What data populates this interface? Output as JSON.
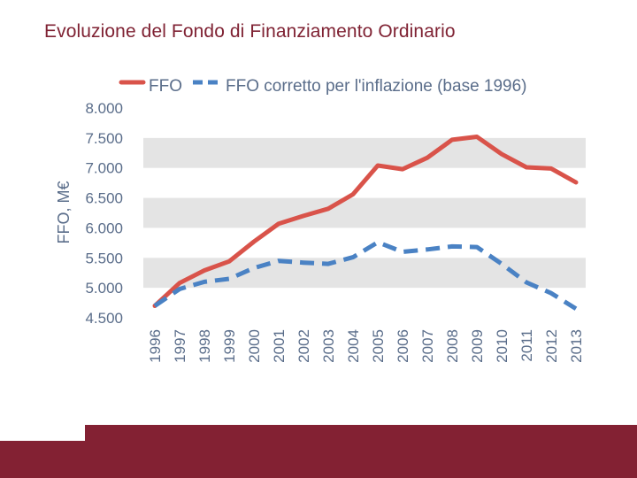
{
  "slide": {
    "title": "Evoluzione del Fondo di Finanziamento Ordinario"
  },
  "chart_data": {
    "type": "line",
    "title": "",
    "xlabel": "",
    "ylabel": "FFO, M€",
    "ylim": [
      4500,
      8000
    ],
    "yticks": [
      "8.000",
      "7.500",
      "7.000",
      "6.500",
      "6.000",
      "5.500",
      "5.000",
      "4.500"
    ],
    "ytick_values": [
      8000,
      7500,
      7000,
      6500,
      6000,
      5500,
      5000,
      4500
    ],
    "categories": [
      "1996",
      "1997",
      "1998",
      "1999",
      "2000",
      "2001",
      "2002",
      "2003",
      "2004",
      "2005",
      "2006",
      "2007",
      "2008",
      "2009",
      "2010",
      "2011",
      "2012",
      "2013"
    ],
    "series": [
      {
        "name": "FFO",
        "color": "#d9534a",
        "dash": "solid",
        "values": [
          4700,
          5080,
          5290,
          5440,
          5770,
          6070,
          6200,
          6320,
          6560,
          7040,
          6980,
          7170,
          7470,
          7520,
          7230,
          7010,
          6990,
          6760
        ]
      },
      {
        "name": "FFO corretto per l'inflazione (base 1996)",
        "color": "#4a82c4",
        "dash": "dashed",
        "values": [
          4700,
          4980,
          5100,
          5150,
          5330,
          5450,
          5420,
          5400,
          5510,
          5760,
          5600,
          5640,
          5690,
          5680,
          5400,
          5090,
          4910,
          4650
        ]
      }
    ],
    "grid": "alternating-bands",
    "legend_position": "top"
  },
  "colors": {
    "accent": "#832133",
    "band": "#e4e4e4",
    "tick_text": "#5a6d8a"
  }
}
